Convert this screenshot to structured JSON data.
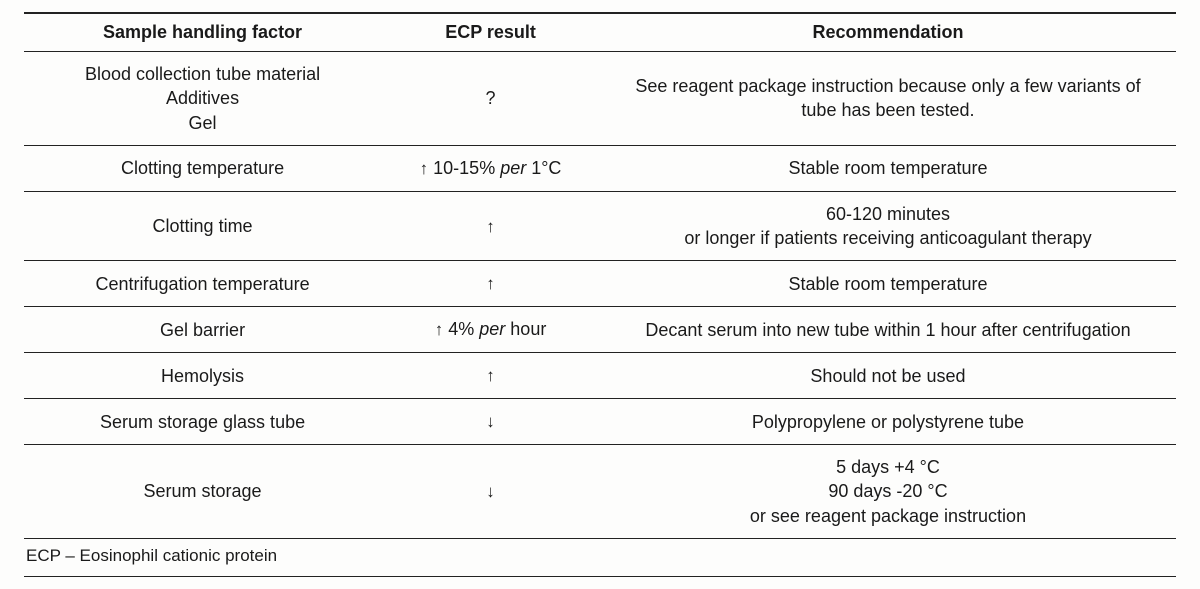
{
  "table": {
    "headers": {
      "factor": "Sample handling factor",
      "ecp": "ECP result",
      "recommendation": "Recommendation"
    },
    "rows": [
      {
        "factor_lines": [
          "Blood collection tube material",
          "Additives",
          "Gel"
        ],
        "ecp_html": "?",
        "rec_lines": [
          "See reagent package instruction because only a few variants of",
          "tube has been tested."
        ]
      },
      {
        "factor_lines": [
          "Clotting temperature"
        ],
        "ecp_html": "<span class=\"arrow\">↑</span> 10-15% <em class=\"per\">per</em> 1°C",
        "rec_lines": [
          "Stable room temperature"
        ]
      },
      {
        "factor_lines": [
          "Clotting time"
        ],
        "ecp_html": "<span class=\"arrow\">↑</span>",
        "rec_lines": [
          "60-120 minutes",
          "or longer if patients receiving anticoagulant therapy"
        ]
      },
      {
        "factor_lines": [
          "Centrifugation temperature"
        ],
        "ecp_html": "<span class=\"arrow\">↑</span>",
        "rec_lines": [
          "Stable room temperature"
        ]
      },
      {
        "factor_lines": [
          "Gel barrier"
        ],
        "ecp_html": "<span class=\"arrow\">↑</span> 4% <em class=\"per\">per</em> hour",
        "rec_lines": [
          "Decant serum into new tube within 1 hour after centrifugation"
        ]
      },
      {
        "factor_lines": [
          "Hemolysis"
        ],
        "ecp_html": "<span class=\"arrow\">↑</span>",
        "rec_lines": [
          "Should not be used"
        ]
      },
      {
        "factor_lines": [
          "Serum storage glass tube"
        ],
        "ecp_html": "<span class=\"arrow\">↓</span>",
        "rec_lines": [
          "Polypropylene or polystyrene tube"
        ]
      },
      {
        "factor_lines": [
          "Serum storage"
        ],
        "ecp_html": "<span class=\"arrow\">↓</span>",
        "rec_lines": [
          "5 days +4 °C",
          "90 days -20 °C",
          "or see reagent package instruction"
        ]
      }
    ],
    "footnote": "ECP – Eosinophil cationic protein",
    "border_color": "#222222",
    "background": "#fdfdfc",
    "text_color": "#1a1a1a",
    "font_size_pt": 13,
    "header_font_weight": 700
  }
}
